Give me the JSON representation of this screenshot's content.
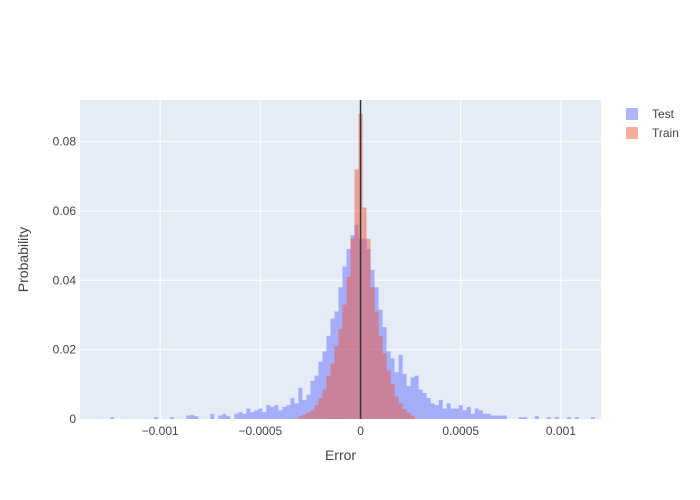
{
  "chart_data": {
    "type": "bar",
    "subtype": "overlaid-histogram",
    "title": "",
    "xlabel": "Error",
    "ylabel": "Probability",
    "xlim": [
      -0.0014,
      0.0012
    ],
    "ylim": [
      0,
      0.092
    ],
    "grid": true,
    "legend_position": "top-right",
    "bin_width": 2e-05,
    "x_ticks": [
      {
        "value": -0.001,
        "label": "−0.001"
      },
      {
        "value": -0.0005,
        "label": "−0.0005"
      },
      {
        "value": 0,
        "label": "0"
      },
      {
        "value": 0.0005,
        "label": "0.0005"
      },
      {
        "value": 0.001,
        "label": "0.001"
      }
    ],
    "y_ticks": [
      {
        "value": 0,
        "label": "0"
      },
      {
        "value": 0.02,
        "label": "0.02"
      },
      {
        "value": 0.04,
        "label": "0.04"
      },
      {
        "value": 0.06,
        "label": "0.06"
      },
      {
        "value": 0.08,
        "label": "0.08"
      }
    ],
    "reference_line_x": 0,
    "series": [
      {
        "name": "Test",
        "color": "#636efa",
        "opacity": 0.5,
        "x": [
          -0.00124,
          -0.00102,
          -0.00094,
          -0.00086,
          -0.00084,
          -0.00082,
          -0.00074,
          -0.0007,
          -0.00068,
          -0.00066,
          -0.00062,
          -0.0006,
          -0.00058,
          -0.00056,
          -0.00054,
          -0.00052,
          -0.0005,
          -0.00048,
          -0.00046,
          -0.00044,
          -0.00042,
          -0.0004,
          -0.00038,
          -0.00036,
          -0.00034,
          -0.00032,
          -0.0003,
          -0.00028,
          -0.00026,
          -0.00024,
          -0.00022,
          -0.0002,
          -0.00018,
          -0.00016,
          -0.00014,
          -0.00012,
          -0.0001,
          -8e-05,
          -6e-05,
          -4e-05,
          -2e-05,
          0,
          2e-05,
          4e-05,
          6e-05,
          8e-05,
          0.0001,
          0.00012,
          0.00014,
          0.00016,
          0.00018,
          0.0002,
          0.00022,
          0.00024,
          0.00026,
          0.00028,
          0.0003,
          0.00032,
          0.00034,
          0.00036,
          0.00038,
          0.0004,
          0.00042,
          0.00044,
          0.00046,
          0.00048,
          0.0005,
          0.00052,
          0.00054,
          0.00056,
          0.00058,
          0.0006,
          0.00062,
          0.00064,
          0.00066,
          0.00068,
          0.0007,
          0.00072,
          0.0008,
          0.00082,
          0.00088,
          0.00094,
          0.00098,
          0.00104,
          0.00108,
          0.00116
        ],
        "values": [
          0.0005,
          0.0005,
          0.0005,
          0.001,
          0.0012,
          0.0008,
          0.0015,
          0.001,
          0.0015,
          0.0008,
          0.0015,
          0.002,
          0.0015,
          0.003,
          0.002,
          0.0025,
          0.003,
          0.002,
          0.004,
          0.0035,
          0.004,
          0.0025,
          0.0035,
          0.004,
          0.006,
          0.0045,
          0.009,
          0.0055,
          0.007,
          0.011,
          0.0125,
          0.0165,
          0.0195,
          0.024,
          0.029,
          0.031,
          0.038,
          0.044,
          0.049,
          0.053,
          0.056,
          0.052,
          0.052,
          0.049,
          0.043,
          0.038,
          0.0315,
          0.0265,
          0.0195,
          0.0175,
          0.0135,
          0.0185,
          0.013,
          0.0095,
          0.012,
          0.0125,
          0.0085,
          0.0075,
          0.006,
          0.0045,
          0.004,
          0.0055,
          0.003,
          0.0045,
          0.003,
          0.003,
          0.004,
          0.0025,
          0.0035,
          0.0015,
          0.003,
          0.0025,
          0.0015,
          0.0015,
          0.001,
          0.001,
          0.001,
          0.001,
          0.0005,
          0.0005,
          0.0008,
          0.0005,
          0.0005,
          0.0005,
          0.0005,
          0.0005
        ]
      },
      {
        "name": "Train",
        "color": "#ef553b",
        "opacity": 0.5,
        "x": [
          -0.0003,
          -0.00028,
          -0.00026,
          -0.00024,
          -0.00022,
          -0.0002,
          -0.00018,
          -0.00016,
          -0.00014,
          -0.00012,
          -0.0001,
          -8e-05,
          -6e-05,
          -4e-05,
          -2e-05,
          0,
          2e-05,
          4e-05,
          6e-05,
          8e-05,
          0.0001,
          0.00012,
          0.00014,
          0.00016,
          0.00018,
          0.0002,
          0.00022,
          0.00024,
          0.00026
        ],
        "values": [
          0.0008,
          0.0012,
          0.0018,
          0.0025,
          0.004,
          0.006,
          0.0085,
          0.0125,
          0.016,
          0.021,
          0.026,
          0.033,
          0.041,
          0.052,
          0.072,
          0.088,
          0.061,
          0.052,
          0.038,
          0.031,
          0.024,
          0.019,
          0.014,
          0.01,
          0.0065,
          0.0045,
          0.0028,
          0.0018,
          0.001
        ]
      }
    ]
  }
}
